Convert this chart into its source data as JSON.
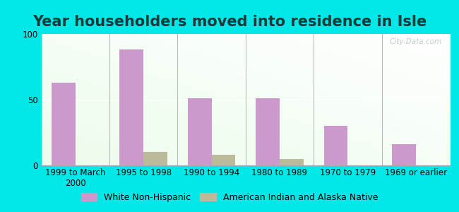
{
  "title": "Year householders moved into residence in Isle",
  "categories": [
    "1999 to March\n2000",
    "1995 to 1998",
    "1990 to 1994",
    "1980 to 1989",
    "1970 to 1979",
    "1969 or earlier"
  ],
  "white_non_hispanic": [
    63,
    88,
    51,
    51,
    30,
    16
  ],
  "american_indian": [
    0,
    10,
    8,
    5,
    0,
    0
  ],
  "white_color": "#cc99cc",
  "indian_color": "#bbbb99",
  "ylim": [
    0,
    100
  ],
  "yticks": [
    0,
    50,
    100
  ],
  "bar_width": 0.35,
  "background_outer": "#00e8e8",
  "title_fontsize": 15,
  "tick_fontsize": 8.5,
  "legend_fontsize": 9,
  "watermark": "City-Data.com"
}
